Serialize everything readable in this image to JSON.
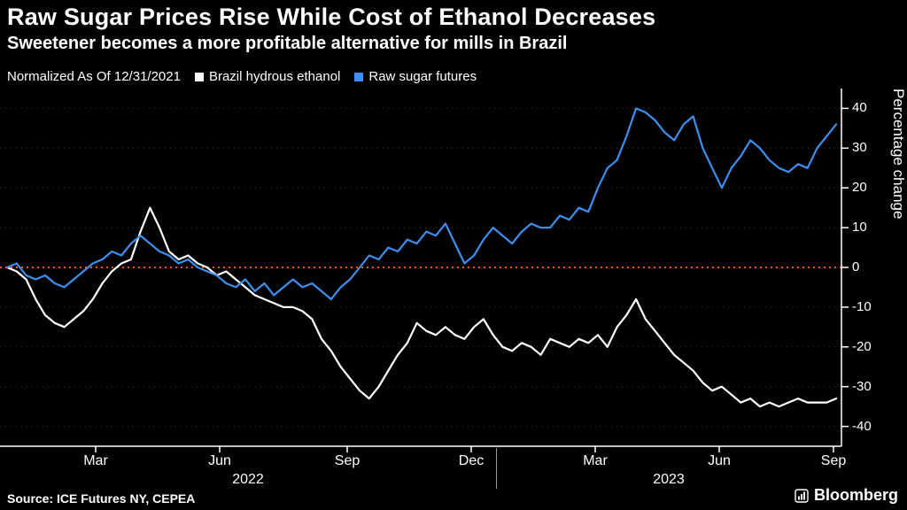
{
  "header": {
    "title": "Raw Sugar Prices Rise While Cost of Ethanol Decreases",
    "subtitle": "Sweetener becomes a more profitable alternative for mills in Brazil"
  },
  "legend": {
    "note": "Normalized As Of 12/31/2021",
    "items": [
      {
        "label": "Brazil hydrous ethanol",
        "color": "#ffffff"
      },
      {
        "label": "Raw sugar futures",
        "color": "#3d8ff0"
      }
    ]
  },
  "footer": {
    "source": "Source: ICE Futures NY, CEPEA",
    "brand": "Bloomberg"
  },
  "chart_data": {
    "type": "line",
    "title": "Raw Sugar Prices Rise While Cost of Ethanol Decreases",
    "subtitle": "Sweetener becomes a more profitable alternative for mills in Brazil",
    "note": "Normalized As Of 12/31/2021",
    "ylabel": "Percentage change",
    "ylim": [
      -45,
      45
    ],
    "yticks": [
      40,
      30,
      20,
      10,
      0,
      -10,
      -20,
      -30,
      -40
    ],
    "grid": "dotted horizontal",
    "legend_position": "top",
    "zero_line": {
      "value": 0,
      "color": "#ff5000"
    },
    "x_ticks": [
      {
        "label": "Mar",
        "pos": 108
      },
      {
        "label": "Jun",
        "pos": 248
      },
      {
        "label": "Sep",
        "pos": 392
      },
      {
        "label": "Dec",
        "pos": 532
      },
      {
        "label": "Mar",
        "pos": 672
      },
      {
        "label": "Jun",
        "pos": 812
      },
      {
        "label": "Sep",
        "pos": 941
      }
    ],
    "year_ticks": [
      {
        "label": "2022",
        "pos": 280
      },
      {
        "label": "2023",
        "pos": 755
      }
    ],
    "year_divider_pos": 560,
    "series": [
      {
        "name": "Brazil hydrous ethanol",
        "color": "#ffffff",
        "values": [
          0,
          -1,
          -3,
          -8,
          -12,
          -14,
          -15,
          -13,
          -11,
          -8,
          -4,
          -1,
          1,
          2,
          9,
          15,
          10,
          4,
          2,
          3,
          1,
          0,
          -2,
          -1,
          -3,
          -5,
          -7,
          -8,
          -9,
          -10,
          -10,
          -11,
          -13,
          -18,
          -21,
          -25,
          -28,
          -31,
          -33,
          -30,
          -26,
          -22,
          -19,
          -14,
          -16,
          -17,
          -15,
          -17,
          -18,
          -15,
          -13,
          -17,
          -20,
          -21,
          -19,
          -20,
          -22,
          -18,
          -19,
          -20,
          -18,
          -19,
          -17,
          -20,
          -15,
          -12,
          -8,
          -13,
          -16,
          -19,
          -22,
          -24,
          -26,
          -29,
          -31,
          -30,
          -32,
          -34,
          -33,
          -35,
          -34,
          -35,
          -34,
          -33,
          -34,
          -34,
          -34,
          -33
        ]
      },
      {
        "name": "Raw sugar futures",
        "color": "#3d8ff0",
        "values": [
          0,
          1,
          -2,
          -3,
          -2,
          -4,
          -5,
          -3,
          -1,
          1,
          2,
          4,
          3,
          6,
          8,
          6,
          4,
          3,
          1,
          2,
          0,
          -1,
          -2,
          -4,
          -5,
          -3,
          -6,
          -4,
          -7,
          -5,
          -3,
          -5,
          -4,
          -6,
          -8,
          -5,
          -3,
          0,
          3,
          2,
          5,
          4,
          7,
          6,
          9,
          8,
          11,
          6,
          1,
          3,
          7,
          10,
          8,
          6,
          9,
          11,
          10,
          10,
          13,
          12,
          15,
          14,
          20,
          25,
          27,
          33,
          40,
          39,
          37,
          34,
          32,
          36,
          38,
          30,
          25,
          20,
          25,
          28,
          32,
          30,
          27,
          25,
          24,
          26,
          25,
          30,
          33,
          36
        ]
      }
    ]
  }
}
